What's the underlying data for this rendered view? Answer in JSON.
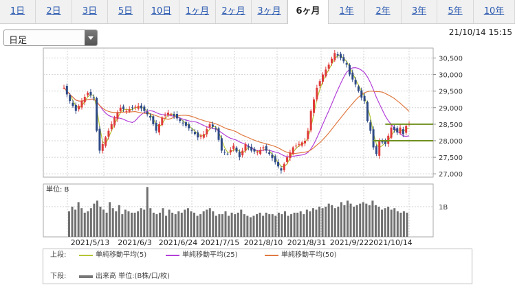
{
  "tabs": [
    "1日",
    "2日",
    "3日",
    "5日",
    "10日",
    "1ヶ月",
    "2ヶ月",
    "3ヶ月",
    "6ヶ月",
    "1年",
    "2年",
    "3年",
    "5年",
    "10年"
  ],
  "active_tab": "6ヶ月",
  "period_select": {
    "value": "日足"
  },
  "timestamp": "21/10/14 15:15",
  "chart_data": {
    "type": "candlestick",
    "y_ticks": [
      27000,
      27500,
      28000,
      28500,
      29000,
      29500,
      30000,
      30500
    ],
    "y_tick_labels": [
      "27,000",
      "27,500",
      "28,000",
      "28,500",
      "29,000",
      "29,500",
      "30,000",
      "30,500"
    ],
    "ylim": [
      26900,
      30800
    ],
    "x_tick_labels": [
      "2021/5/13",
      "2021/6/3",
      "2021/6/24",
      "2021/7/15",
      "2021/8/10",
      "2021/8/31",
      "2021/9/22",
      "2021/10/14"
    ],
    "volume_unit_label": "単位: B",
    "volume_tick_label": "1B",
    "volume_ylim": [
      0,
      1.75
    ],
    "volume": [
      0.85,
      1.0,
      0.9,
      1.15,
      0.95,
      0.8,
      0.85,
      0.95,
      1.1,
      1.2,
      1.0,
      0.9,
      0.8,
      1.15,
      0.95,
      0.85,
      1.05,
      0.75,
      0.9,
      0.85,
      0.8,
      0.8,
      0.85,
      0.95,
      0.9,
      1.65,
      0.95,
      0.8,
      0.75,
      0.8,
      0.95,
      0.7,
      0.9,
      0.8,
      0.75,
      0.85,
      0.8,
      0.9,
      0.95,
      0.85,
      0.8,
      0.7,
      0.75,
      0.85,
      0.9,
      0.95,
      0.85,
      0.7,
      0.75,
      0.75,
      0.85,
      0.7,
      0.8,
      0.75,
      0.8,
      0.9,
      0.75,
      0.7,
      0.65,
      0.7,
      0.75,
      0.8,
      0.7,
      0.8,
      0.75,
      0.75,
      0.7,
      0.8,
      0.75,
      0.85,
      0.7,
      0.75,
      0.8,
      0.8,
      0.85,
      0.75,
      0.9,
      0.85,
      0.95,
      0.9,
      1.0,
      0.95,
      1.0,
      1.1,
      1.05,
      0.95,
      1.0,
      1.15,
      1.05,
      1.2,
      1.1,
      1.0,
      1.05,
      1.1,
      1.15,
      1.1,
      1.05,
      1.2,
      1.05,
      1.0,
      0.9,
      0.95,
      1.0,
      0.9,
      0.95,
      0.85,
      0.8,
      0.85,
      0.8
    ],
    "close_path": [
      [
        0,
        29600
      ],
      [
        4,
        29200
      ],
      [
        8,
        28900
      ],
      [
        12,
        29200
      ],
      [
        16,
        29450
      ],
      [
        20,
        29300
      ],
      [
        22,
        28300
      ],
      [
        24,
        27700
      ],
      [
        26,
        27900
      ],
      [
        30,
        28300
      ],
      [
        34,
        28700
      ],
      [
        38,
        29000
      ],
      [
        42,
        28900
      ],
      [
        46,
        29000
      ],
      [
        50,
        29050
      ],
      [
        54,
        28900
      ],
      [
        58,
        28700
      ],
      [
        62,
        28300
      ],
      [
        66,
        28700
      ],
      [
        70,
        28850
      ],
      [
        74,
        28750
      ],
      [
        78,
        28600
      ],
      [
        82,
        28450
      ],
      [
        86,
        28300
      ],
      [
        90,
        28100
      ],
      [
        94,
        28200
      ],
      [
        98,
        28500
      ],
      [
        102,
        28350
      ],
      [
        106,
        27700
      ],
      [
        110,
        27600
      ],
      [
        114,
        27850
      ],
      [
        118,
        27500
      ],
      [
        122,
        27900
      ],
      [
        126,
        27700
      ],
      [
        130,
        27650
      ],
      [
        134,
        27800
      ],
      [
        138,
        27600
      ],
      [
        142,
        27350
      ],
      [
        146,
        27100
      ],
      [
        150,
        27500
      ],
      [
        154,
        27800
      ],
      [
        158,
        27900
      ],
      [
        162,
        28000
      ],
      [
        164,
        28300
      ],
      [
        166,
        28900
      ],
      [
        170,
        29600
      ],
      [
        174,
        30000
      ],
      [
        178,
        30300
      ],
      [
        182,
        30650
      ],
      [
        186,
        30500
      ],
      [
        190,
        30300
      ],
      [
        192,
        30000
      ],
      [
        196,
        29700
      ],
      [
        200,
        29300
      ],
      [
        202,
        29200
      ],
      [
        204,
        28600
      ],
      [
        206,
        28300
      ],
      [
        208,
        27800
      ],
      [
        210,
        27600
      ],
      [
        212,
        28000
      ],
      [
        216,
        27900
      ],
      [
        220,
        28400
      ],
      [
        224,
        28250
      ],
      [
        226,
        28400
      ],
      [
        228,
        28200
      ],
      [
        230,
        28450
      ],
      [
        232,
        28500
      ]
    ],
    "series": [
      {
        "name": "単純移動平均(5)",
        "color": "#b6c634"
      },
      {
        "name": "単純移動平均(25)",
        "color": "#b340d8"
      },
      {
        "name": "単純移動平均(50)",
        "color": "#e07a42"
      }
    ],
    "hlines": [
      {
        "value": 28500,
        "color": "#6f8f1e"
      },
      {
        "value": 28000,
        "color": "#6f8f1e"
      }
    ]
  },
  "legend": {
    "upper_heading": "上段:",
    "lower_heading": "下段:",
    "items": [
      "単純移動平均(5)",
      "単純移動平均(25)",
      "単純移動平均(50)"
    ],
    "volume_label": "出来高 単位:(B株/口/枚)",
    "volume_color": "#777777"
  }
}
